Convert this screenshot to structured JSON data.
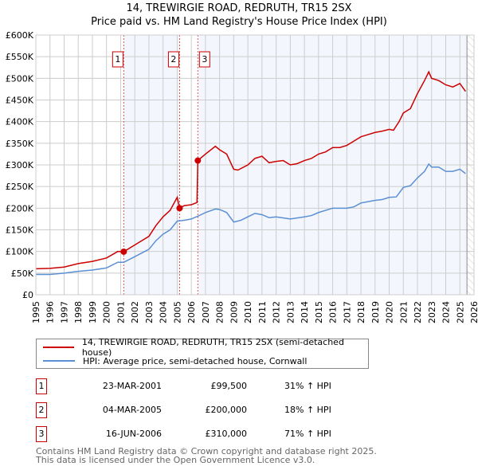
{
  "chart_data": {
    "type": "line",
    "title": "14, TREWIRGIE ROAD, REDRUTH, TR15 2SX",
    "subtitle": "Price paid vs. HM Land Registry's House Price Index (HPI)",
    "xlim": [
      1995,
      2026
    ],
    "ylim": [
      0,
      600000
    ],
    "x_ticks": [
      "1995",
      "1996",
      "1997",
      "1998",
      "1999",
      "2000",
      "2001",
      "2002",
      "2003",
      "2004",
      "2005",
      "2006",
      "2007",
      "2008",
      "2009",
      "2010",
      "2011",
      "2012",
      "2013",
      "2014",
      "2015",
      "2016",
      "2017",
      "2018",
      "2019",
      "2020",
      "2021",
      "2022",
      "2023",
      "2024",
      "2025",
      "2026"
    ],
    "y_ticks": [
      {
        "v": 0,
        "l": "£0"
      },
      {
        "v": 50000,
        "l": "£50K"
      },
      {
        "v": 100000,
        "l": "£100K"
      },
      {
        "v": 150000,
        "l": "£150K"
      },
      {
        "v": 200000,
        "l": "£200K"
      },
      {
        "v": 250000,
        "l": "£250K"
      },
      {
        "v": 300000,
        "l": "£300K"
      },
      {
        "v": 350000,
        "l": "£350K"
      },
      {
        "v": 400000,
        "l": "£400K"
      },
      {
        "v": 450000,
        "l": "£450K"
      },
      {
        "v": 500000,
        "l": "£500K"
      },
      {
        "v": 550000,
        "l": "£550K"
      },
      {
        "v": 600000,
        "l": "£600K"
      }
    ],
    "grid": true,
    "forecast_start": 2025.5,
    "series": [
      {
        "name": "14, TREWIRGIE ROAD, REDRUTH, TR15 2SX (semi-detached house)",
        "color": "#cc0000",
        "x": [
          1995,
          1996,
          1997,
          1998,
          1999,
          2000,
          2000.8,
          2001.22,
          2002,
          2003,
          2003.5,
          2004,
          2004.5,
          2005,
          2005.17,
          2005.5,
          2006,
          2006.4,
          2006.46,
          2007,
          2007.7,
          2008,
          2008.5,
          2009,
          2009.3,
          2010,
          2010.5,
          2011,
          2011.5,
          2012,
          2012.5,
          2013,
          2013.5,
          2014,
          2014.5,
          2015,
          2015.5,
          2016,
          2016.5,
          2017,
          2017.5,
          2018,
          2018.5,
          2019,
          2019.5,
          2020,
          2020.3,
          2020.7,
          2021,
          2021.5,
          2022,
          2022.5,
          2022.8,
          2023,
          2023.5,
          2024,
          2024.5,
          2025,
          2025.4
        ],
        "y": [
          60000,
          61000,
          64000,
          72000,
          77000,
          85000,
          100000,
          99500,
          115000,
          135000,
          160000,
          180000,
          195000,
          225000,
          200000,
          206000,
          208000,
          213000,
          310000,
          325000,
          343000,
          335000,
          325000,
          290000,
          288000,
          300000,
          315000,
          320000,
          305000,
          308000,
          310000,
          300000,
          303000,
          310000,
          315000,
          325000,
          330000,
          340000,
          340000,
          345000,
          355000,
          365000,
          370000,
          375000,
          378000,
          382000,
          380000,
          400000,
          420000,
          430000,
          465000,
          495000,
          515000,
          500000,
          495000,
          485000,
          480000,
          488000,
          470000
        ]
      },
      {
        "name": "HPI: Average price, semi-detached house, Cornwall",
        "color": "#5b8fd4",
        "x": [
          1995,
          1996,
          1997,
          1998,
          1999,
          2000,
          2000.8,
          2001.22,
          2002,
          2003,
          2003.5,
          2004,
          2004.5,
          2005,
          2005.5,
          2006,
          2006.5,
          2007,
          2007.7,
          2008,
          2008.5,
          2009,
          2009.5,
          2010,
          2010.5,
          2011,
          2011.5,
          2012,
          2013,
          2014,
          2014.5,
          2015,
          2016,
          2017,
          2017.5,
          2018,
          2019,
          2019.5,
          2020,
          2020.5,
          2021,
          2021.5,
          2022,
          2022.5,
          2022.8,
          2023,
          2023.5,
          2024,
          2024.5,
          2025,
          2025.4
        ],
        "y": [
          47000,
          47000,
          50000,
          54000,
          57000,
          62000,
          75000,
          75000,
          88000,
          105000,
          125000,
          140000,
          150000,
          170000,
          172000,
          175000,
          182000,
          190000,
          198000,
          197000,
          190000,
          168000,
          172000,
          180000,
          188000,
          185000,
          178000,
          180000,
          175000,
          180000,
          183000,
          190000,
          200000,
          200000,
          203000,
          212000,
          218000,
          220000,
          225000,
          226000,
          248000,
          252000,
          270000,
          285000,
          302000,
          295000,
          295000,
          285000,
          285000,
          290000,
          280000
        ]
      }
    ],
    "sales": [
      {
        "n": "1",
        "x": 2001.22,
        "y": 99500,
        "date": "23-MAR-2001",
        "price": "£99,500",
        "hpi": "31% ↑ HPI"
      },
      {
        "n": "2",
        "x": 2005.17,
        "y": 200000,
        "date": "04-MAR-2005",
        "price": "£200,000",
        "hpi": "18% ↑ HPI"
      },
      {
        "n": "3",
        "x": 2006.46,
        "y": 310000,
        "date": "16-JUN-2006",
        "price": "£310,000",
        "hpi": "71% ↑ HPI"
      }
    ]
  },
  "footer": {
    "line1": "Contains HM Land Registry data © Crown copyright and database right 2025.",
    "line2": "This data is licensed under the Open Government Licence v3.0."
  }
}
